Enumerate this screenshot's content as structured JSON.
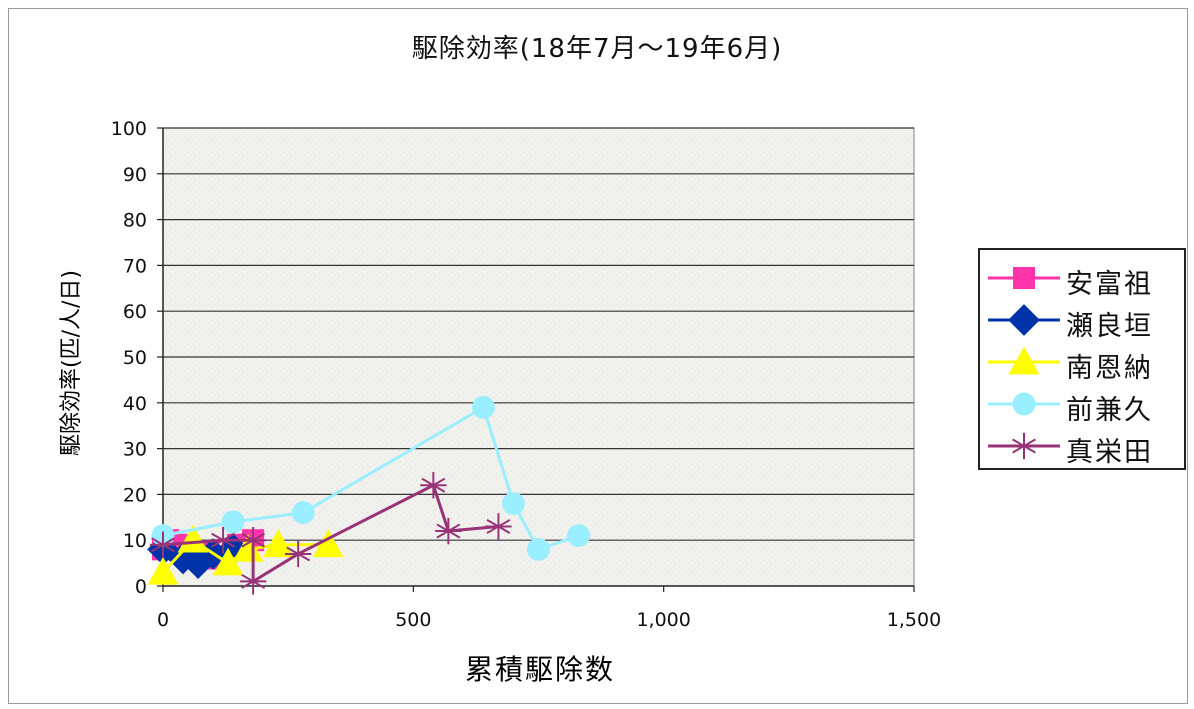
{
  "chart_data": {
    "type": "line",
    "title": "駆除効率(18年7月～19年6月)",
    "xlabel": "累積駆除数",
    "ylabel": "駆除効率(匹/人/日)",
    "xlim": [
      0,
      1500
    ],
    "ylim": [
      0,
      100
    ],
    "x_ticks": [
      "0",
      "500",
      "1,000",
      "1,500"
    ],
    "y_ticks": [
      "0",
      "10",
      "20",
      "30",
      "40",
      "50",
      "60",
      "70",
      "80",
      "90",
      "100"
    ],
    "grid": "horizontal",
    "legend_position": "right",
    "series": [
      {
        "name": "安富祖",
        "color": "#ff33aa",
        "marker": "square",
        "points": [
          [
            0,
            8
          ],
          [
            10,
            10
          ],
          [
            40,
            9
          ],
          [
            80,
            7
          ],
          [
            110,
            6
          ],
          [
            150,
            9
          ],
          [
            180,
            10
          ]
        ]
      },
      {
        "name": "瀬良垣",
        "color": "#0033aa",
        "marker": "diamond",
        "points": [
          [
            0,
            8
          ],
          [
            40,
            6
          ],
          [
            70,
            5
          ],
          [
            100,
            7
          ],
          [
            140,
            8
          ]
        ]
      },
      {
        "name": "南恩納",
        "color": "#ffff00",
        "marker": "triangle",
        "points": [
          [
            0,
            3
          ],
          [
            60,
            10
          ],
          [
            130,
            5
          ],
          [
            170,
            8
          ],
          [
            230,
            9
          ],
          [
            330,
            9
          ]
        ]
      },
      {
        "name": "前兼久",
        "color": "#99eeff",
        "marker": "circle",
        "points": [
          [
            0,
            11
          ],
          [
            140,
            14
          ],
          [
            280,
            16
          ],
          [
            640,
            39
          ],
          [
            700,
            18
          ],
          [
            750,
            8
          ],
          [
            830,
            11
          ]
        ]
      },
      {
        "name": "真栄田",
        "color": "#993377",
        "marker": "star",
        "points": [
          [
            0,
            9
          ],
          [
            120,
            10
          ],
          [
            180,
            10
          ],
          [
            180,
            1
          ],
          [
            270,
            7
          ],
          [
            540,
            22
          ],
          [
            570,
            12
          ],
          [
            670,
            13
          ]
        ]
      }
    ]
  }
}
